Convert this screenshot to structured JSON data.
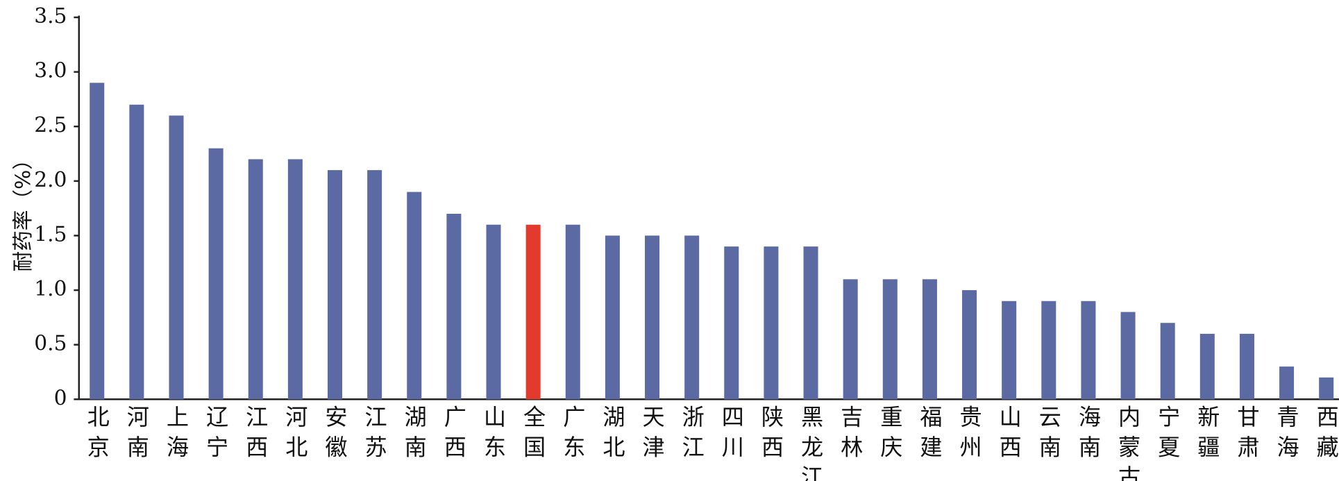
{
  "chart_data": {
    "type": "bar",
    "y_label": "耐药率（%）",
    "categories": [
      "北京",
      "河南",
      "上海",
      "辽宁",
      "江西",
      "河北",
      "安徽",
      "江苏",
      "湖南",
      "广西",
      "山东",
      "全国",
      "广东",
      "湖北",
      "天津",
      "浙江",
      "四川",
      "陕西",
      "黑龙江",
      "吉林",
      "重庆",
      "福建",
      "贵州",
      "山西",
      "云南",
      "海南",
      "内蒙古",
      "宁夏",
      "新疆",
      "甘肃",
      "青海",
      "西藏"
    ],
    "values": [
      2.9,
      2.7,
      2.6,
      2.3,
      2.2,
      2.2,
      2.1,
      2.1,
      1.9,
      1.7,
      1.6,
      1.6,
      1.6,
      1.5,
      1.5,
      1.5,
      1.4,
      1.4,
      1.4,
      1.1,
      1.1,
      1.1,
      1.0,
      0.9,
      0.9,
      0.9,
      0.8,
      0.7,
      0.6,
      0.6,
      0.3,
      0.2
    ],
    "colors": [
      "#5b6aa3",
      "#5b6aa3",
      "#5b6aa3",
      "#5b6aa3",
      "#5b6aa3",
      "#5b6aa3",
      "#5b6aa3",
      "#5b6aa3",
      "#5b6aa3",
      "#5b6aa3",
      "#5b6aa3",
      "#e23b2e",
      "#5b6aa3",
      "#5b6aa3",
      "#5b6aa3",
      "#5b6aa3",
      "#5b6aa3",
      "#5b6aa3",
      "#5b6aa3",
      "#5b6aa3",
      "#5b6aa3",
      "#5b6aa3",
      "#5b6aa3",
      "#5b6aa3",
      "#5b6aa3",
      "#5b6aa3",
      "#5b6aa3",
      "#5b6aa3",
      "#5b6aa3",
      "#5b6aa3",
      "#5b6aa3",
      "#5b6aa3"
    ],
    "ylim": [
      0,
      3.5
    ],
    "yticks": [
      0,
      0.5,
      {
        "value": 1,
        "label": "1.0"
      },
      1.5,
      {
        "value": 2,
        "label": "2.0"
      },
      2.5,
      {
        "value": 3,
        "label": "3.0"
      },
      3.5
    ],
    "grid": false
  }
}
